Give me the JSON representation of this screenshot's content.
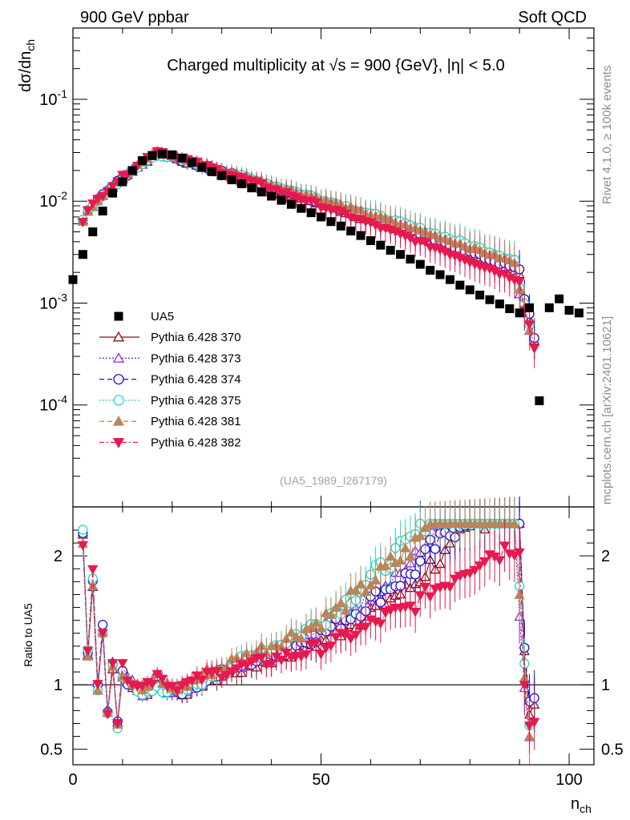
{
  "header": {
    "left": "900 GeV ppbar",
    "right": "Soft QCD"
  },
  "side": {
    "rivet": "Rivet 4.1.0, ≥ 100k events",
    "mcplots": "mcplots.cern.ch [arXiv:2401.10621]"
  },
  "chart_data": {
    "type": "scatter",
    "title": "Charged multiplicity at √s = 900 {GeV}, |η| < 5.0",
    "reference": "(UA5_1989_I267179)",
    "xlabel": "n_ch",
    "ylabel": "dσ/dn_ch",
    "ratio_ylabel": "Ratio to UA5",
    "xlim": [
      0,
      105
    ],
    "ylim": [
      1e-05,
      0.5
    ],
    "yscale": "log",
    "ratio_ylim": [
      0.38,
      2.38
    ],
    "x_ticks": [
      0,
      50,
      100
    ],
    "y_ticks": [
      {
        "value": 0.1,
        "label": "10^-1"
      },
      {
        "value": 0.01,
        "label": "10^-2"
      },
      {
        "value": 0.001,
        "label": "10^-3"
      },
      {
        "value": 0.0001,
        "label": "10^-4"
      }
    ],
    "ratio_ticks": [
      0.5,
      1,
      2
    ],
    "data": {
      "name": "UA5",
      "x": [
        0,
        2,
        4,
        6,
        8,
        10,
        12,
        14,
        16,
        18,
        20,
        22,
        24,
        26,
        28,
        30,
        32,
        34,
        36,
        38,
        40,
        42,
        44,
        46,
        48,
        50,
        52,
        54,
        56,
        58,
        60,
        62,
        64,
        66,
        68,
        70,
        72,
        74,
        76,
        78,
        80,
        82,
        84,
        86,
        88,
        90,
        92,
        94,
        96,
        98,
        100,
        102
      ],
      "y": [
        0.0017,
        0.003,
        0.005,
        0.008,
        0.012,
        0.0155,
        0.02,
        0.025,
        0.028,
        0.029,
        0.0285,
        0.0265,
        0.024,
        0.0215,
        0.0195,
        0.0178,
        0.0162,
        0.0148,
        0.0135,
        0.0123,
        0.0112,
        0.0102,
        0.0093,
        0.0085,
        0.0077,
        0.007,
        0.0063,
        0.0057,
        0.0051,
        0.0046,
        0.0041,
        0.0037,
        0.0033,
        0.003,
        0.0027,
        0.0024,
        0.0021,
        0.0019,
        0.0017,
        0.0015,
        0.00135,
        0.0012,
        0.00108,
        0.00098,
        0.00088,
        0.0008,
        0.0009,
        0.00011,
        0.0009,
        0.0011,
        0.00085,
        0.0008
      ]
    },
    "series": [
      {
        "name": "Pythia 6.428 370",
        "color": "#8b0f14",
        "marker": "triangle-up-open",
        "dash": "solid",
        "peak": 0.0295,
        "tail_slope": -0.042,
        "cutoff": 93
      },
      {
        "name": "Pythia 6.428 373",
        "color": "#8b2be2",
        "marker": "triangle-up-open",
        "dash": "2,2",
        "peak": 0.03,
        "tail_slope": -0.04,
        "cutoff": 92
      },
      {
        "name": "Pythia 6.428 374",
        "color": "#1f10d8",
        "marker": "circle-open",
        "dash": "6,4",
        "peak": 0.03,
        "tail_slope": -0.041,
        "cutoff": 93
      },
      {
        "name": "Pythia 6.428 375",
        "color": "#20d8c8",
        "marker": "circle-open",
        "dash": "2,2",
        "peak": 0.029,
        "tail_slope": -0.037,
        "cutoff": 92
      },
      {
        "name": "Pythia 6.428 381",
        "color": "#b8865b",
        "marker": "triangle-up-filled",
        "dash": "6,4",
        "peak": 0.0305,
        "tail_slope": -0.039,
        "cutoff": 92
      },
      {
        "name": "Pythia 6.428 382",
        "color": "#e8194f",
        "marker": "triangle-down-filled",
        "dash": "6,3,2,3",
        "peak": 0.0315,
        "tail_slope": -0.046,
        "cutoff": 93
      }
    ],
    "ratio_reference_line": 1
  }
}
